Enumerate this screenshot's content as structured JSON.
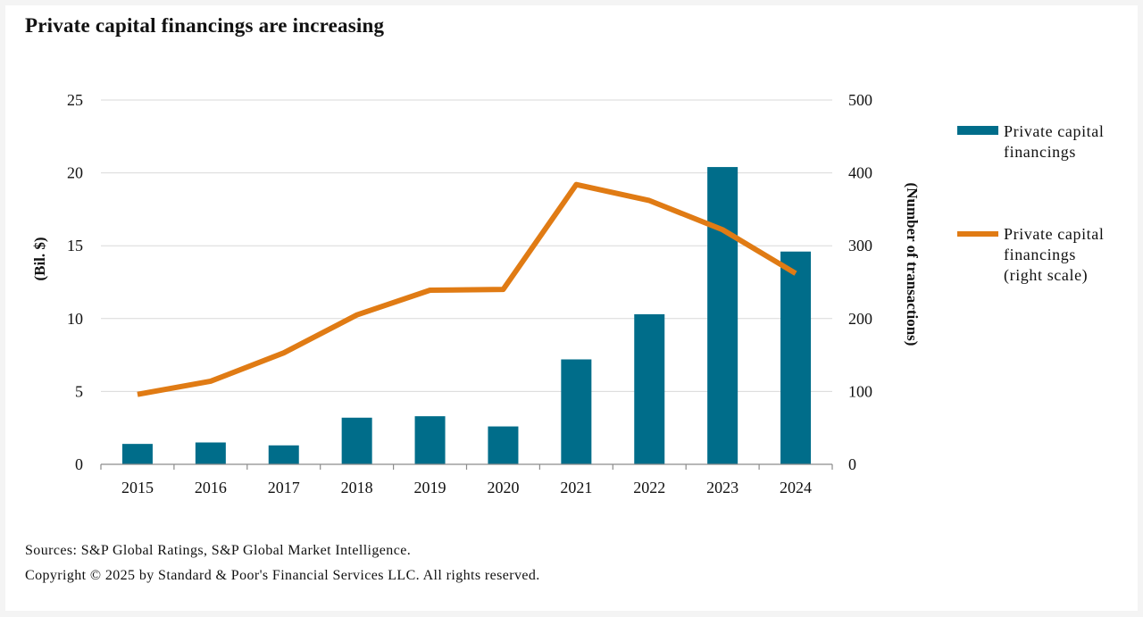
{
  "title": "Private capital financings are increasing",
  "sources": "Sources: S&P Global Ratings, S&P Global Market Intelligence.",
  "copyright": "Copyright © 2025 by Standard & Poor's Financial Services LLC. All rights reserved.",
  "colors": {
    "bars": "#006d8a",
    "line": "#e07b14",
    "grid": "#d9d9d9"
  },
  "chart_data": {
    "type": "bar",
    "categories": [
      "2015",
      "2016",
      "2017",
      "2018",
      "2019",
      "2020",
      "2021",
      "2022",
      "2023",
      "2024"
    ],
    "series": [
      {
        "name": "Private capital financings",
        "type": "bar",
        "axis": "left",
        "values": [
          1.4,
          1.5,
          1.3,
          3.2,
          3.3,
          2.6,
          7.2,
          10.3,
          20.4,
          14.6
        ]
      },
      {
        "name": "Private capital financings (right scale)",
        "type": "line",
        "axis": "right",
        "values": [
          96,
          114,
          153,
          205,
          239,
          240,
          384,
          362,
          322,
          262
        ]
      }
    ],
    "ylabel": "(Bil. $)",
    "y2label": "(Number of transactions)",
    "ylim": [
      0,
      25
    ],
    "y2lim": [
      0,
      500
    ],
    "yticks": [
      "0",
      "5",
      "10",
      "15",
      "20",
      "25"
    ],
    "y2ticks": [
      "0",
      "100",
      "200",
      "300",
      "400",
      "500"
    ],
    "grid": true,
    "legend_position": "right",
    "legend": [
      {
        "lines": [
          "Private capital",
          "financings"
        ],
        "marker": "bar"
      },
      {
        "lines": [
          "Private capital",
          "financings",
          "(right scale)"
        ],
        "marker": "line"
      }
    ]
  }
}
